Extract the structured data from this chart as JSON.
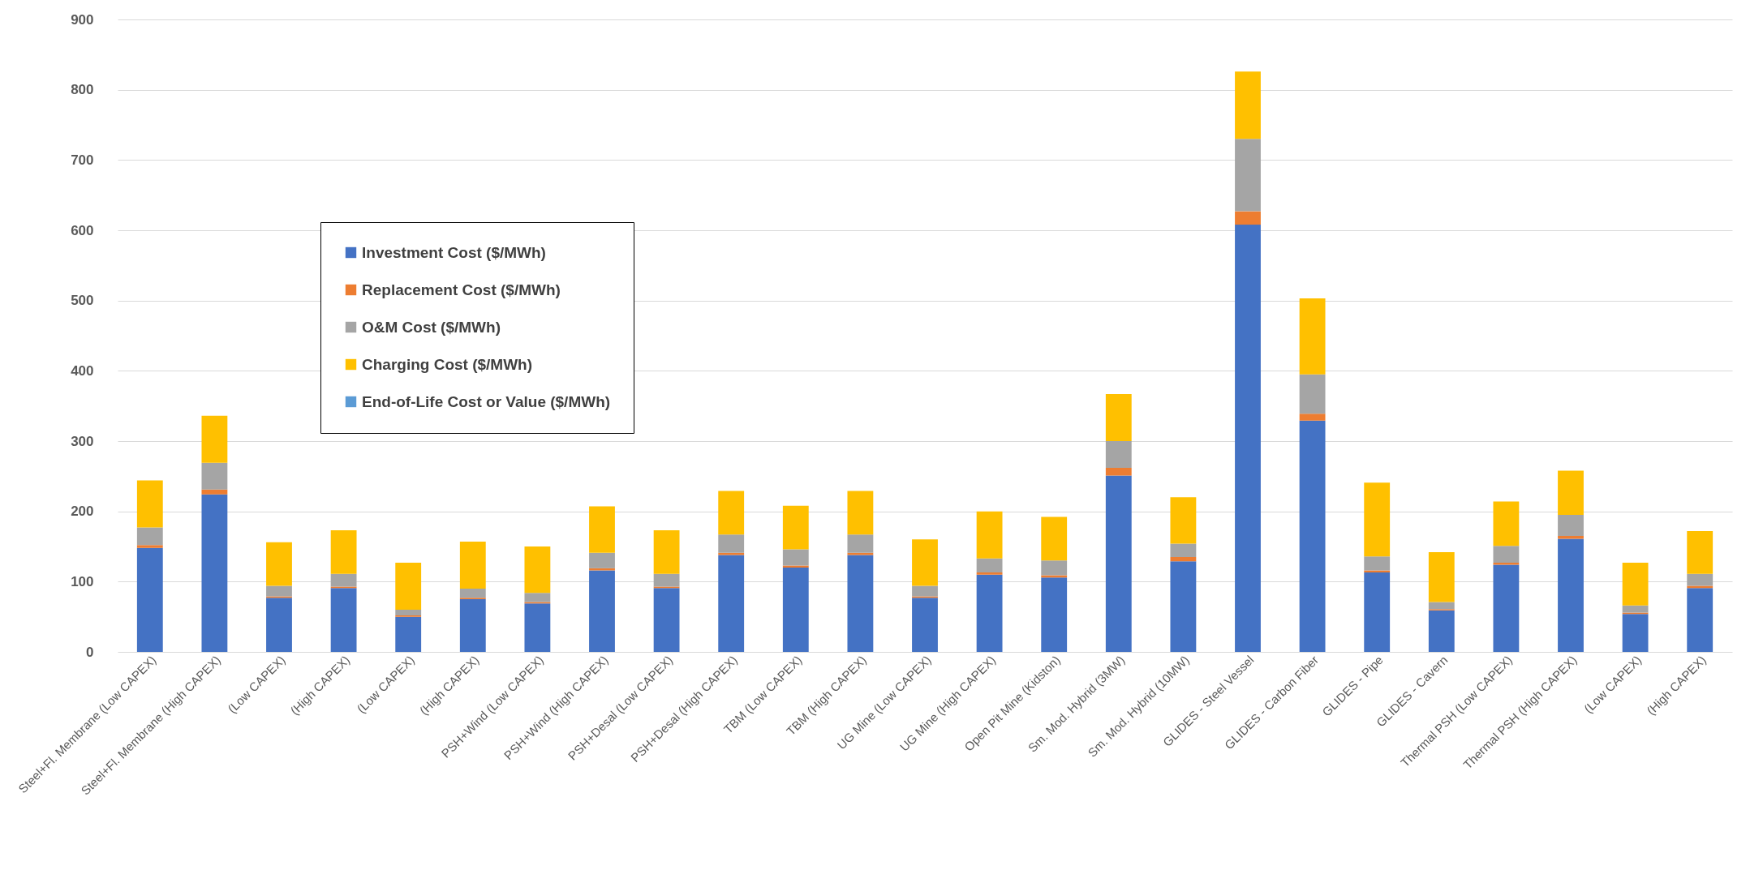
{
  "chart_data": {
    "type": "bar",
    "stacked": true,
    "categories": [
      "Steel+Fl. Membrane (Low CAPEX)",
      "Steel+Fl. Membrane (High CAPEX)",
      "(Low CAPEX)",
      "(High CAPEX)",
      "(Low CAPEX)",
      "(High CAPEX)",
      "PSH+Wind (Low CAPEX)",
      "PSH+Wind (High CAPEX)",
      "PSH+Desal (Low CAPEX)",
      "PSH+Desal (High CAPEX)",
      "TBM (Low CAPEX)",
      "TBM (High CAPEX)",
      "UG Mine (Low CAPEX)",
      "UG Mine (High CAPEX)",
      "Open Pit Mine (Kidston)",
      "Sm. Mod. Hybrid (3MW)",
      "Sm. Mod. Hybrid (10MW)",
      "GLIDES - Steel Vessel",
      "GLIDES - Carbon Fiber",
      "GLIDES - Pipe",
      "GLIDES - Cavern",
      "Thermal PSH (Low CAPEX)",
      "Thermal PSH (High CAPEX)",
      "(Low CAPEX)",
      "(High CAPEX)"
    ],
    "series": [
      {
        "name": "Investment Cost ($/MWh)",
        "color": "#4472c4",
        "values": [
          148,
          224,
          77,
          91,
          50,
          75,
          69,
          116,
          91,
          138,
          120,
          138,
          77,
          110,
          106,
          251,
          129,
          608,
          329,
          113,
          59,
          124,
          161,
          54,
          91
        ]
      },
      {
        "name": "Replacement Cost ($/MWh)",
        "color": "#ed7d31",
        "values": [
          4,
          7,
          2,
          2,
          2,
          2,
          2,
          3,
          2,
          3,
          3,
          3,
          2,
          3,
          3,
          11,
          6,
          19,
          10,
          3,
          2,
          3,
          4,
          2,
          3
        ]
      },
      {
        "name": "O&M Cost ($/MWh)",
        "color": "#a5a5a5",
        "values": [
          25,
          38,
          15,
          18,
          8,
          13,
          13,
          22,
          18,
          26,
          23,
          26,
          15,
          20,
          21,
          38,
          19,
          103,
          56,
          20,
          10,
          24,
          30,
          10,
          17
        ]
      },
      {
        "name": "Charging Cost ($/MWh)",
        "color": "#ffc000",
        "values": [
          67,
          67,
          62,
          62,
          67,
          67,
          66,
          66,
          62,
          62,
          62,
          62,
          66,
          67,
          62,
          67,
          66,
          96,
          108,
          105,
          71,
          63,
          63,
          61,
          61
        ]
      },
      {
        "name": "End-of-Life Cost or Value ($/MWh)",
        "color": "#5b9bd5",
        "values": [
          0,
          0,
          0,
          0,
          0,
          0,
          0,
          0,
          0,
          0,
          0,
          0,
          0,
          0,
          0,
          0,
          0,
          0,
          0,
          0,
          0,
          0,
          0,
          0,
          0
        ]
      }
    ],
    "ylim": [
      0,
      900
    ],
    "yticks": [
      0,
      100,
      200,
      300,
      400,
      500,
      600,
      700,
      800,
      900
    ],
    "grid": "y",
    "legend": "top left"
  }
}
